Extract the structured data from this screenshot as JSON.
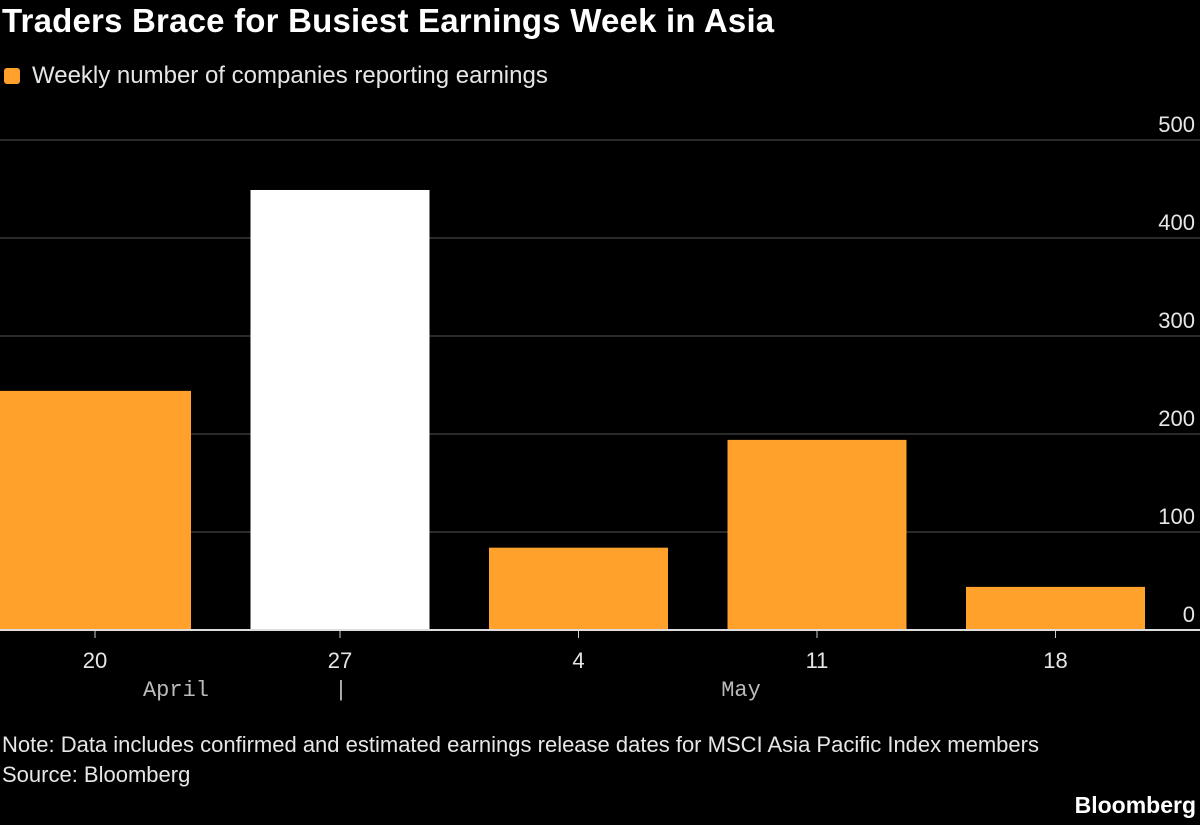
{
  "title": "Traders Brace for Busiest Earnings Week in Asia",
  "note": "Note: Data includes confirmed and estimated earnings release dates for MSCI Asia Pacific Index members",
  "source": "Source: Bloomberg",
  "brand": "Bloomberg",
  "colors": {
    "background": "#000000",
    "series": "#FFA12B",
    "highlight": "#FFFFFF",
    "grid": "#555555"
  },
  "chart_data": {
    "type": "bar",
    "title": "Traders Brace for Busiest Earnings Week in Asia",
    "legend": "Weekly number of companies reporting earnings",
    "legend_placement": "top-left",
    "categories": [
      "20",
      "27",
      "4",
      "11",
      "18"
    ],
    "month_labels": [
      "April",
      "May"
    ],
    "month_separator": "|",
    "values": [
      244,
      449,
      84,
      194,
      44
    ],
    "highlighted_category": "27",
    "yticks": [
      0,
      100,
      200,
      300,
      400,
      500
    ],
    "ylim": [
      0,
      500
    ],
    "y_axis_side": "right",
    "grid": true
  }
}
